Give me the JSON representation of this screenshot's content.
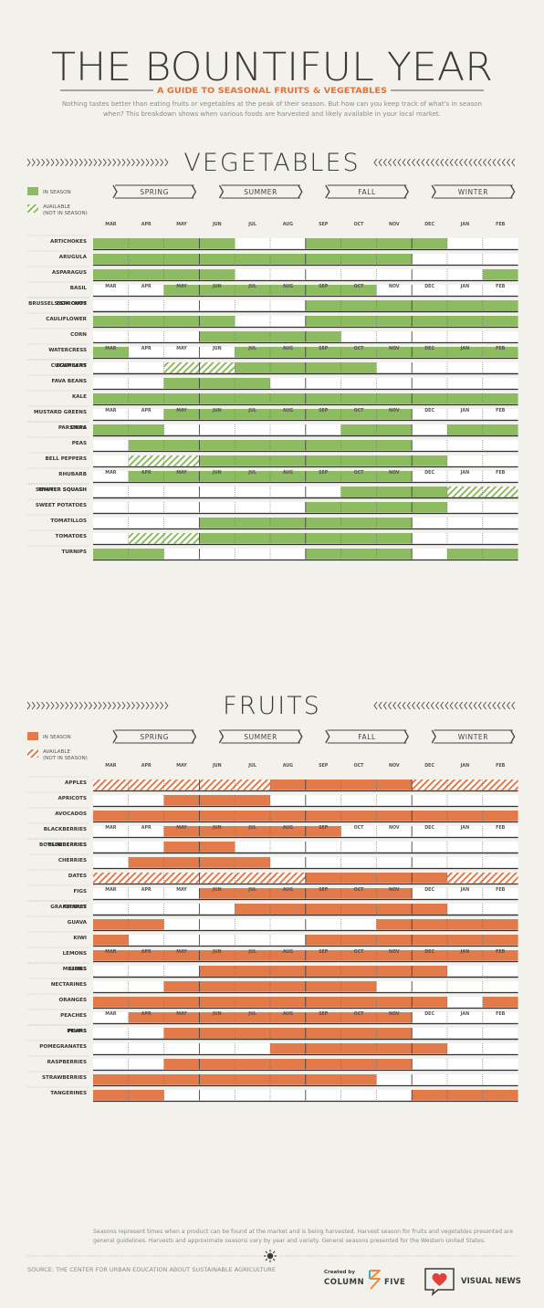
{
  "header": {
    "title": "THE BOUNTIFUL YEAR",
    "subtitle": "A GUIDE TO SEASONAL FRUITS & VEGETABLES",
    "intro_line1": "Nothing tastes better than eating fruits or vegetables at the peak of their season. But how can you keep track of what's in season",
    "intro_line2": "when? This breakdown shows when various foods are harvested and likely available in your local market."
  },
  "colors": {
    "vegetable": "#8dbb5f",
    "fruit": "#e27a4a",
    "text": "#3a3a3a",
    "muted": "#8a8a8a",
    "background": "#f2f1ec"
  },
  "months": [
    "MAR",
    "APR",
    "MAY",
    "JUN",
    "JUL",
    "AUG",
    "SEP",
    "OCT",
    "NOV",
    "DEC",
    "JAN",
    "FEB"
  ],
  "seasons": [
    "SPRING",
    "SUMMER",
    "FALL",
    "WINTER"
  ],
  "chart_data": [
    {
      "type": "table",
      "title": "VEGETABLES",
      "legend": {
        "in_season": "IN SEASON",
        "available_l1": "AVAILABLE",
        "available_l2": "(NOT IN SEASON)"
      },
      "groups": [
        [
          {
            "name": "ARTICHOKES",
            "s": [
              1,
              1,
              1,
              1,
              0,
              0,
              1,
              1,
              1,
              1,
              0,
              0
            ],
            "a": []
          },
          {
            "name": "ARUGULA",
            "s": [
              1,
              1,
              1,
              1,
              1,
              1,
              1,
              1,
              1,
              0,
              0,
              0
            ],
            "a": []
          },
          {
            "name": "ASPARAGUS",
            "s": [
              1,
              1,
              1,
              1,
              0,
              0,
              0,
              0,
              0,
              0,
              0,
              1
            ],
            "a": []
          },
          {
            "name": "BASIL",
            "s": [
              0,
              0,
              1,
              1,
              1,
              1,
              1,
              1,
              0,
              0,
              0,
              0
            ],
            "a": []
          },
          {
            "name": "BOK CHOY",
            "s": [
              1,
              1,
              1,
              1,
              0,
              0,
              1,
              1,
              1,
              1,
              1,
              1
            ],
            "a": []
          }
        ],
        [
          {
            "name": "BRUSSELS SPROUTS",
            "s": [
              0,
              0,
              0,
              0,
              0,
              0,
              1,
              1,
              1,
              1,
              1,
              1
            ],
            "a": []
          },
          {
            "name": "CAULIFLOWER",
            "s": [
              1,
              1,
              1,
              1,
              0,
              0,
              1,
              1,
              1,
              1,
              1,
              1
            ],
            "a": []
          },
          {
            "name": "CORN",
            "s": [
              0,
              0,
              0,
              1,
              1,
              1,
              1,
              0,
              0,
              0,
              0,
              0
            ],
            "a": []
          },
          {
            "name": "WATERCRESS",
            "s": [
              1,
              0,
              0,
              0,
              1,
              1,
              1,
              1,
              1,
              1,
              1,
              1
            ],
            "a": []
          },
          {
            "name": "CUCUMBERS",
            "s": [
              0,
              0,
              0,
              1,
              1,
              1,
              1,
              1,
              1,
              1,
              0,
              0
            ],
            "a": [
              2
            ]
          }
        ],
        [
          {
            "name": "EGGPLANT",
            "s": [
              0,
              0,
              0,
              0,
              1,
              1,
              1,
              1,
              0,
              0,
              0,
              0
            ],
            "a": [
              2,
              3
            ]
          },
          {
            "name": "FAVA BEANS",
            "s": [
              0,
              0,
              1,
              1,
              1,
              0,
              0,
              0,
              0,
              0,
              0,
              0
            ],
            "a": []
          },
          {
            "name": "KALE",
            "s": [
              1,
              1,
              1,
              1,
              1,
              1,
              1,
              1,
              1,
              1,
              1,
              1
            ],
            "a": []
          },
          {
            "name": "MUSTARD GREENS",
            "s": [
              0,
              0,
              1,
              1,
              1,
              1,
              1,
              1,
              1,
              0,
              0,
              0
            ],
            "a": []
          },
          {
            "name": "OKRA",
            "s": [
              0,
              0,
              0,
              1,
              1,
              1,
              1,
              1,
              1,
              0,
              0,
              0
            ],
            "a": []
          }
        ],
        [
          {
            "name": "PARSNIPS",
            "s": [
              1,
              1,
              0,
              0,
              0,
              0,
              0,
              1,
              1,
              0,
              1,
              1
            ],
            "a": []
          },
          {
            "name": "PEAS",
            "s": [
              0,
              1,
              1,
              1,
              1,
              1,
              1,
              1,
              1,
              0,
              0,
              0
            ],
            "a": []
          },
          {
            "name": "BELL PEPPERS",
            "s": [
              0,
              0,
              0,
              1,
              1,
              1,
              1,
              1,
              1,
              1,
              0,
              0
            ],
            "a": [
              1,
              2
            ]
          },
          {
            "name": "RHUBARB",
            "s": [
              0,
              1,
              1,
              1,
              1,
              1,
              1,
              1,
              1,
              0,
              0,
              0
            ],
            "a": []
          },
          {
            "name": "SUMMER SQUASH",
            "s": [
              0,
              0,
              1,
              1,
              1,
              1,
              1,
              0,
              0,
              0,
              0,
              0
            ],
            "a": []
          }
        ],
        [
          {
            "name": "WINTER SQUASH",
            "s": [
              0,
              0,
              0,
              0,
              0,
              0,
              0,
              1,
              1,
              1,
              0,
              0
            ],
            "a": [
              10,
              11
            ]
          },
          {
            "name": "SWEET POTATOES",
            "s": [
              0,
              0,
              0,
              0,
              0,
              0,
              1,
              1,
              1,
              1,
              0,
              0
            ],
            "a": []
          },
          {
            "name": "TOMATILLOS",
            "s": [
              0,
              0,
              0,
              1,
              1,
              1,
              1,
              1,
              1,
              0,
              0,
              0
            ],
            "a": []
          },
          {
            "name": "TOMATOES",
            "s": [
              0,
              0,
              0,
              1,
              1,
              1,
              1,
              1,
              1,
              0,
              0,
              0
            ],
            "a": [
              1,
              2
            ]
          },
          {
            "name": "TURNIPS",
            "s": [
              1,
              1,
              0,
              0,
              0,
              0,
              1,
              1,
              1,
              0,
              1,
              1
            ],
            "a": []
          }
        ]
      ]
    },
    {
      "type": "table",
      "title": "FRUITS",
      "legend": {
        "in_season": "IN SEASON",
        "available_l1": "AVAILABLE",
        "available_l2": "(NOT IN SEASON)"
      },
      "groups": [
        [
          {
            "name": "APPLES",
            "s": [
              0,
              0,
              0,
              0,
              0,
              1,
              1,
              1,
              1,
              0,
              0,
              0
            ],
            "a": [
              0,
              1,
              2,
              3,
              4,
              9,
              10,
              11
            ]
          },
          {
            "name": "APRICOTS",
            "s": [
              0,
              0,
              1,
              1,
              1,
              0,
              0,
              0,
              0,
              0,
              0,
              0
            ],
            "a": []
          },
          {
            "name": "AVOCADOS",
            "s": [
              1,
              1,
              1,
              1,
              1,
              1,
              1,
              1,
              1,
              1,
              1,
              1
            ],
            "a": []
          },
          {
            "name": "BLACKBERRIES",
            "s": [
              0,
              0,
              1,
              1,
              1,
              1,
              1,
              0,
              0,
              0,
              0,
              0
            ],
            "a": []
          },
          {
            "name": "BLUEBERRIES",
            "s": [
              0,
              0,
              1,
              1,
              1,
              1,
              1,
              1,
              1,
              0,
              0,
              0
            ],
            "a": []
          }
        ],
        [
          {
            "name": "BOYSENBERRIES",
            "s": [
              0,
              0,
              1,
              1,
              0,
              0,
              0,
              0,
              0,
              0,
              0,
              0
            ],
            "a": []
          },
          {
            "name": "CHERRIES",
            "s": [
              0,
              1,
              1,
              1,
              1,
              0,
              0,
              0,
              0,
              0,
              0,
              0
            ],
            "a": []
          },
          {
            "name": "DATES",
            "s": [
              0,
              0,
              0,
              0,
              0,
              0,
              1,
              1,
              1,
              1,
              0,
              0
            ],
            "a": [
              0,
              1,
              2,
              3,
              4,
              5,
              10,
              11
            ]
          },
          {
            "name": "FIGS",
            "s": [
              0,
              0,
              0,
              1,
              1,
              1,
              1,
              1,
              1,
              0,
              0,
              0
            ],
            "a": []
          },
          {
            "name": "GRAPEFRUIT",
            "s": [
              1,
              1,
              0,
              0,
              0,
              0,
              0,
              0,
              0,
              1,
              1,
              1
            ],
            "a": []
          }
        ],
        [
          {
            "name": "GRAPES",
            "s": [
              0,
              0,
              0,
              0,
              1,
              1,
              1,
              1,
              1,
              1,
              0,
              0
            ],
            "a": []
          },
          {
            "name": "GUAVA",
            "s": [
              1,
              1,
              0,
              0,
              0,
              0,
              0,
              0,
              1,
              1,
              1,
              1
            ],
            "a": []
          },
          {
            "name": "KIWI",
            "s": [
              1,
              0,
              0,
              0,
              0,
              0,
              1,
              1,
              1,
              1,
              1,
              1
            ],
            "a": []
          },
          {
            "name": "LEMONS",
            "s": [
              1,
              1,
              1,
              1,
              1,
              1,
              1,
              1,
              1,
              1,
              1,
              1
            ],
            "a": []
          },
          {
            "name": "LIMES",
            "s": [
              1,
              1,
              0,
              0,
              0,
              0,
              0,
              1,
              1,
              1,
              1,
              1
            ],
            "a": []
          }
        ],
        [
          {
            "name": "MELONS",
            "s": [
              0,
              0,
              0,
              1,
              1,
              1,
              1,
              1,
              1,
              1,
              0,
              0
            ],
            "a": []
          },
          {
            "name": "NECTARINES",
            "s": [
              0,
              0,
              1,
              1,
              1,
              1,
              1,
              1,
              0,
              0,
              0,
              0
            ],
            "a": []
          },
          {
            "name": "ORANGES",
            "s": [
              1,
              1,
              1,
              1,
              1,
              1,
              1,
              1,
              1,
              1,
              0,
              1
            ],
            "a": []
          },
          {
            "name": "PEACHES",
            "s": [
              0,
              1,
              1,
              1,
              1,
              1,
              1,
              1,
              1,
              0,
              0,
              0
            ],
            "a": []
          },
          {
            "name": "PEARS",
            "s": [
              0,
              0,
              0,
              0,
              0,
              1,
              1,
              1,
              1,
              0,
              1,
              1
            ],
            "a": []
          }
        ],
        [
          {
            "name": "PLUMS",
            "s": [
              0,
              0,
              1,
              1,
              1,
              1,
              1,
              1,
              1,
              0,
              0,
              0
            ],
            "a": []
          },
          {
            "name": "POMEGRANATES",
            "s": [
              0,
              0,
              0,
              0,
              0,
              1,
              1,
              1,
              1,
              1,
              0,
              0
            ],
            "a": []
          },
          {
            "name": "RASPBERRIES",
            "s": [
              0,
              0,
              1,
              1,
              1,
              1,
              1,
              1,
              1,
              0,
              0,
              0
            ],
            "a": []
          },
          {
            "name": "STRAWBERRIES",
            "s": [
              1,
              1,
              1,
              1,
              1,
              1,
              1,
              1,
              0,
              0,
              0,
              0
            ],
            "a": []
          },
          {
            "name": "TANGERINES",
            "s": [
              1,
              1,
              0,
              0,
              0,
              0,
              0,
              0,
              0,
              1,
              1,
              1
            ],
            "a": []
          }
        ]
      ]
    }
  ],
  "footer": {
    "note_line1": "Seasons represent times when a product can be found at the market and is being harvested. Harvest season for fruits and vegetables presented are",
    "note_line2": "general guidelines. Harvests and approximate seasons vary by year and variety. General seasons presented for the Western United States.",
    "source": "SOURCE: THE CENTER FOR URBAN EDUCATION ABOUT SUSTAINABLE AGRICULTURE",
    "created_by": "Created by",
    "brand1_a": "COLUMN",
    "brand1_b": "FIVE",
    "brand2": "VISUAL NEWS"
  }
}
